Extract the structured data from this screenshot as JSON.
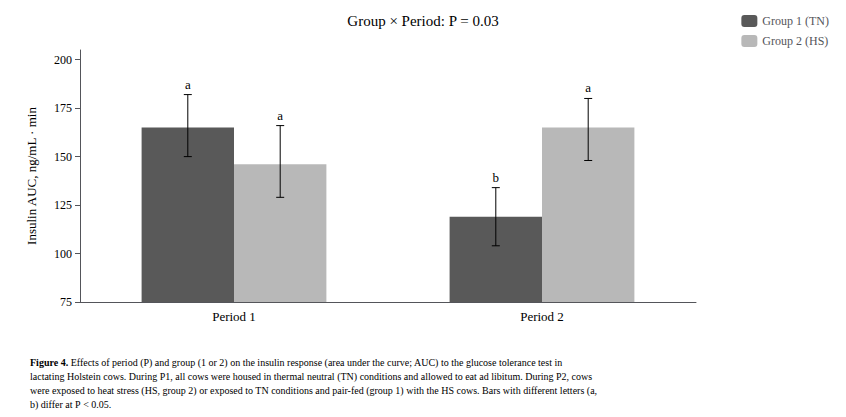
{
  "chart_data": {
    "type": "bar",
    "title": "Group × Period: P = 0.03",
    "y_label": "Insulin AUC, ng/mL · min",
    "categories": [
      "Period 1",
      "Period 2"
    ],
    "series": [
      {
        "name": "Group 1 (TN)",
        "color": "#595959",
        "values": [
          165,
          119
        ],
        "error_lower": [
          15,
          15
        ],
        "error_upper": [
          17,
          15
        ],
        "letters": [
          "a",
          "b"
        ]
      },
      {
        "name": "Group 2 (HS)",
        "color": "#b8b8b8",
        "values": [
          146,
          165
        ],
        "error_lower": [
          17,
          17
        ],
        "error_upper": [
          20,
          15
        ],
        "letters": [
          "a",
          "a"
        ]
      }
    ],
    "ylim": [
      75,
      205
    ],
    "yticks": [
      75,
      100,
      125,
      150,
      175,
      200
    ],
    "grid": false,
    "legend": "upper right",
    "caption": {
      "bold": "Figure 4.",
      "text": " Effects of period (P) and group (1 or 2) on the insulin response (area under the curve; AUC) to the glucose tolerance test in\nlactating Holstein cows. During P1, all cows were housed in thermal neutral (TN) conditions and allowed to eat ad libitum. During P2, cows\nwere exposed to heat stress (HS, group 2) or exposed to TN conditions and pair-fed (group 1) with the HS cows. Bars with different letters (a,\nb) differ at Ρ < 0.05."
    },
    "background_color": "#ffffff"
  }
}
